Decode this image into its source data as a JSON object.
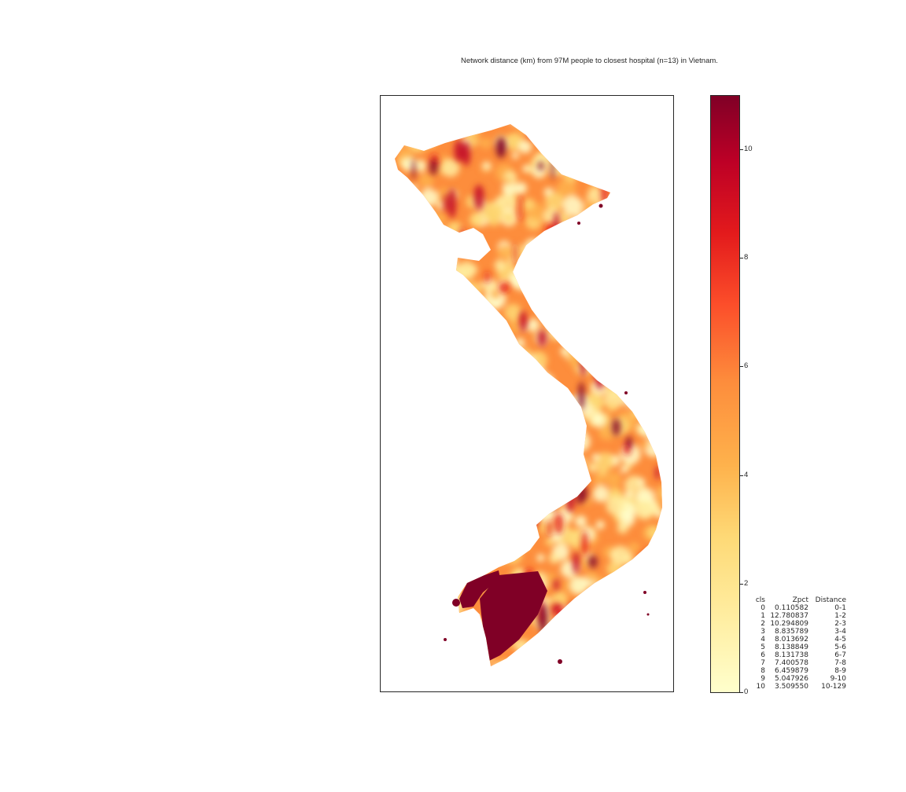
{
  "title": "Network distance (km) from 97M people to closest hospital (n=13) in Vietnam.",
  "map": {
    "region": "Vietnam",
    "variable": "Network distance (km) to closest hospital",
    "colormap": "YlOrRd",
    "colors": {
      "low": "#ffffcc",
      "mid": "#fd8d3c",
      "high": "#800026",
      "frame": "#262626"
    }
  },
  "colorbar": {
    "min": 0,
    "max": 11,
    "ticks": [
      "0",
      "2",
      "4",
      "6",
      "8",
      "10"
    ]
  },
  "stats_table": {
    "columns": [
      "cls",
      "Zpct",
      "Distance"
    ],
    "rows": [
      [
        "0",
        "0.110582",
        "0-1"
      ],
      [
        "1",
        "12.780837",
        "1-2"
      ],
      [
        "2",
        "10.294809",
        "2-3"
      ],
      [
        "3",
        "8.835789",
        "3-4"
      ],
      [
        "4",
        "8.013692",
        "4-5"
      ],
      [
        "5",
        "8.138849",
        "5-6"
      ],
      [
        "6",
        "8.131738",
        "6-7"
      ],
      [
        "7",
        "7.400578",
        "7-8"
      ],
      [
        "8",
        "6.459879",
        "8-9"
      ],
      [
        "9",
        "5.047926",
        "9-10"
      ],
      [
        "10",
        "3.509550",
        "10-129"
      ]
    ]
  }
}
